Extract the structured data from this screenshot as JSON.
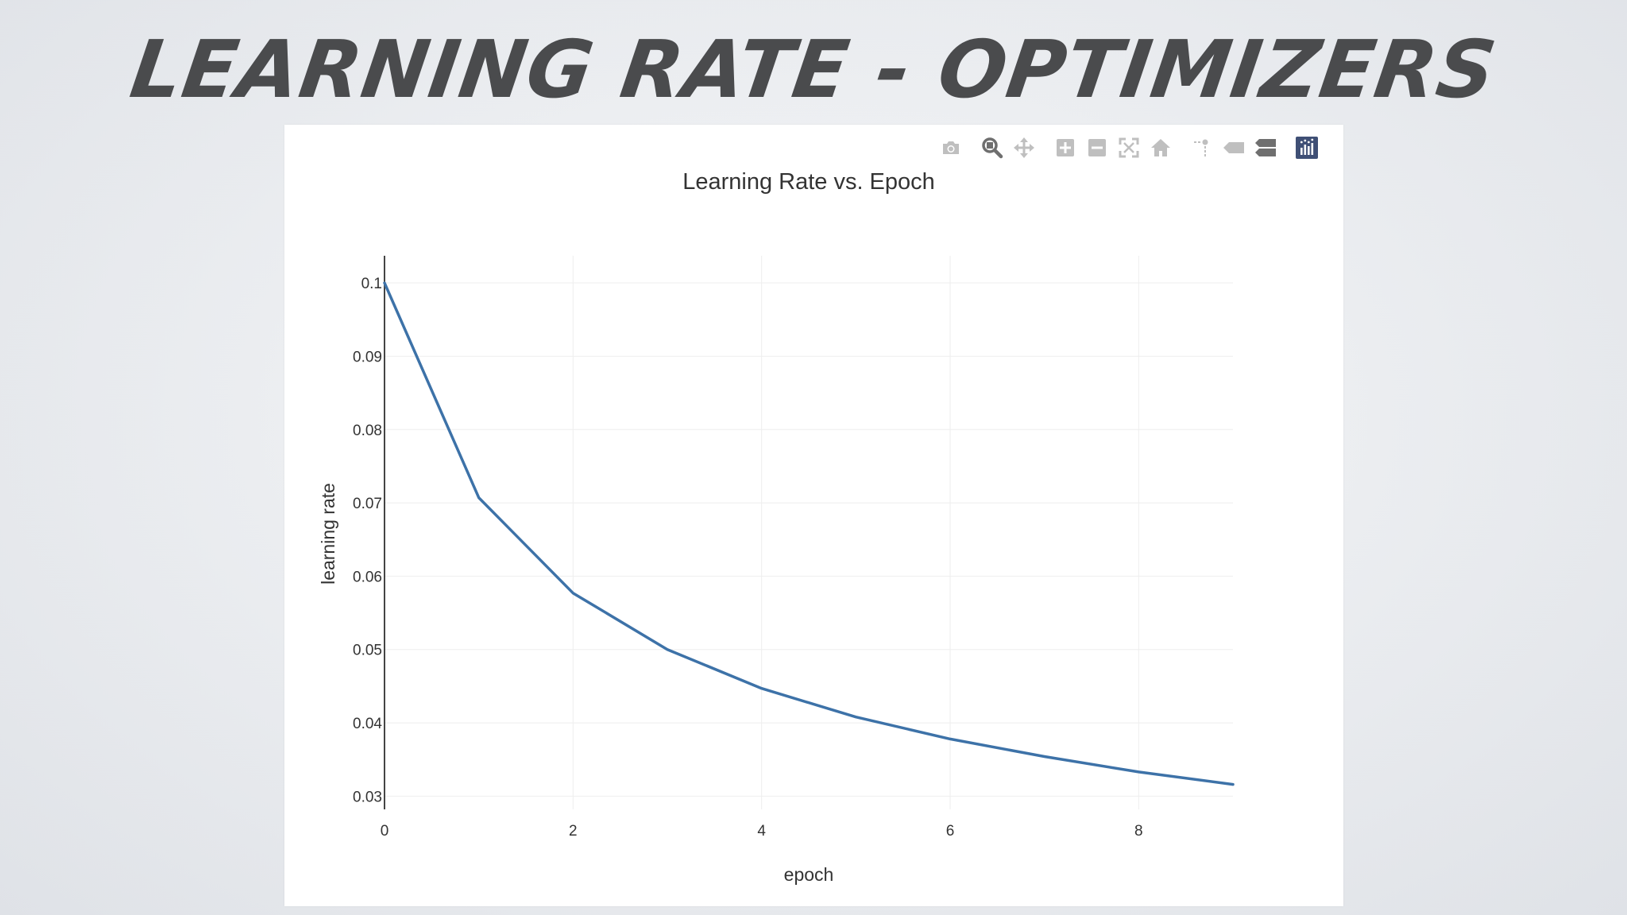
{
  "slide": {
    "title": "LEARNING RATE - OPTIMIZERS"
  },
  "modebar": {
    "icons": [
      "camera-icon",
      "zoom-icon",
      "pan-icon",
      "zoom-in-icon",
      "zoom-out-icon",
      "autoscale-icon",
      "reset-axes-icon",
      "spike-lines-icon",
      "hover-closest-icon",
      "hover-compare-icon",
      "plotly-logo-icon"
    ]
  },
  "colors": {
    "line": "#3d72a8",
    "grid": "#eeeeee",
    "axis": "#444444",
    "icon_muted": "#bfbfbf",
    "icon_active": "#6f6f6f",
    "logo": "#3f4f75"
  },
  "chart_data": {
    "type": "line",
    "title": "Learning Rate vs. Epoch",
    "xlabel": "epoch",
    "ylabel": "learning rate",
    "x": [
      0,
      1,
      2,
      3,
      4,
      5,
      6,
      7,
      8,
      9
    ],
    "y": [
      0.1,
      0.0707,
      0.0577,
      0.05,
      0.0447,
      0.0408,
      0.0378,
      0.0354,
      0.0333,
      0.0316
    ],
    "xlim": [
      0,
      9
    ],
    "ylim": [
      0.0282,
      0.1037
    ],
    "xticks": [
      0,
      2,
      4,
      6,
      8
    ],
    "xtick_labels": [
      "0",
      "2",
      "4",
      "6",
      "8"
    ],
    "yticks": [
      0.03,
      0.04,
      0.05,
      0.06,
      0.07,
      0.08,
      0.09,
      0.1
    ],
    "ytick_labels": [
      "0.03",
      "0.04",
      "0.05",
      "0.06",
      "0.07",
      "0.08",
      "0.09",
      "0.1"
    ],
    "grid": true,
    "legend": false
  }
}
